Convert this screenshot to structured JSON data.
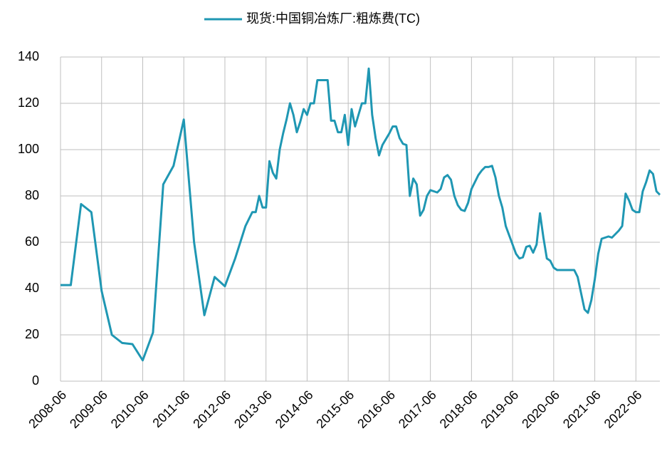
{
  "chart_data": {
    "type": "line",
    "xlim": [
      "2008-06",
      "2023-01"
    ],
    "xticks": [
      "2008-06",
      "2009-06",
      "2010-06",
      "2011-06",
      "2012-06",
      "2013-06",
      "2014-06",
      "2015-06",
      "2016-06",
      "2017-06",
      "2018-06",
      "2019-06",
      "2020-06",
      "2021-06",
      "2022-06"
    ],
    "ylim": [
      0,
      140
    ],
    "yticks": [
      0,
      20,
      40,
      60,
      80,
      100,
      120,
      140
    ],
    "grid": true,
    "legend": "top",
    "x": [
      "2008-06",
      "2008-09",
      "2008-12",
      "2009-03",
      "2009-06",
      "2009-09",
      "2009-12",
      "2010-03",
      "2010-06",
      "2010-09",
      "2010-12",
      "2011-03",
      "2011-06",
      "2011-09",
      "2011-12",
      "2012-03",
      "2012-06",
      "2012-09",
      "2012-12",
      "2013-02",
      "2013-03",
      "2013-04",
      "2013-05",
      "2013-06",
      "2013-07",
      "2013-08",
      "2013-09",
      "2013-10",
      "2013-11",
      "2013-12",
      "2014-01",
      "2014-02",
      "2014-03",
      "2014-04",
      "2014-05",
      "2014-06",
      "2014-07",
      "2014-08",
      "2014-09",
      "2014-12",
      "2015-01",
      "2015-02",
      "2015-03",
      "2015-04",
      "2015-05",
      "2015-06",
      "2015-07",
      "2015-08",
      "2015-10",
      "2015-11",
      "2015-12",
      "2016-01",
      "2016-02",
      "2016-03",
      "2016-04",
      "2016-06",
      "2016-07",
      "2016-08",
      "2016-09",
      "2016-10",
      "2016-11",
      "2016-12",
      "2017-01",
      "2017-02",
      "2017-03",
      "2017-04",
      "2017-05",
      "2017-06",
      "2017-08",
      "2017-09",
      "2017-10",
      "2017-11",
      "2017-12",
      "2018-01",
      "2018-02",
      "2018-03",
      "2018-04",
      "2018-05",
      "2018-06",
      "2018-07",
      "2018-08",
      "2018-09",
      "2018-10",
      "2018-11",
      "2018-12",
      "2019-01",
      "2019-02",
      "2019-03",
      "2019-04",
      "2019-05",
      "2019-06",
      "2019-07",
      "2019-08",
      "2019-09",
      "2019-10",
      "2019-11",
      "2019-12",
      "2020-01",
      "2020-02",
      "2020-03",
      "2020-04",
      "2020-05",
      "2020-06",
      "2020-07",
      "2020-09",
      "2020-10",
      "2020-11",
      "2020-12",
      "2021-01",
      "2021-02",
      "2021-03",
      "2021-04",
      "2021-05",
      "2021-06",
      "2021-07",
      "2021-08",
      "2021-09",
      "2021-10",
      "2021-11",
      "2021-12",
      "2022-01",
      "2022-02",
      "2022-03",
      "2022-04",
      "2022-05",
      "2022-06",
      "2022-07",
      "2022-08",
      "2022-09",
      "2022-10",
      "2022-11",
      "2022-12",
      "2023-01"
    ],
    "series": [
      {
        "name": "现货:中国铜冶炼厂:粗炼费(TC)",
        "color": "#1f97b3",
        "values": [
          41.5,
          41.5,
          76.5,
          73,
          39,
          20,
          16.5,
          16,
          9,
          21,
          85,
          93,
          113,
          60,
          28.5,
          45,
          41,
          53,
          67,
          73,
          73,
          80,
          75,
          75,
          95,
          90,
          87.5,
          100,
          107,
          113,
          120,
          115,
          107.5,
          112,
          117.5,
          115,
          120,
          120,
          130,
          130,
          112.5,
          112.5,
          107.5,
          107.5,
          115,
          102,
          117.5,
          110,
          120,
          120,
          135,
          115,
          105,
          97.5,
          102,
          107,
          110,
          110,
          105,
          102.5,
          102,
          80,
          87.5,
          85,
          71.5,
          74,
          80,
          82.5,
          81.5,
          83,
          88,
          89,
          87,
          80,
          76,
          74,
          73.5,
          77,
          83,
          86,
          89,
          91,
          92.5,
          92.5,
          93,
          88,
          80,
          75,
          67,
          63,
          59,
          55,
          53,
          53.5,
          58,
          58.5,
          55.5,
          59,
          72.5,
          62,
          53,
          52,
          49,
          48,
          48,
          48,
          48,
          48,
          45,
          38,
          31,
          29.5,
          35,
          44,
          55,
          61.5,
          62,
          62.5,
          62,
          63.5,
          65,
          67,
          81,
          78,
          74,
          73,
          73,
          82,
          86,
          91,
          89.5,
          82,
          80.5
        ]
      }
    ]
  }
}
